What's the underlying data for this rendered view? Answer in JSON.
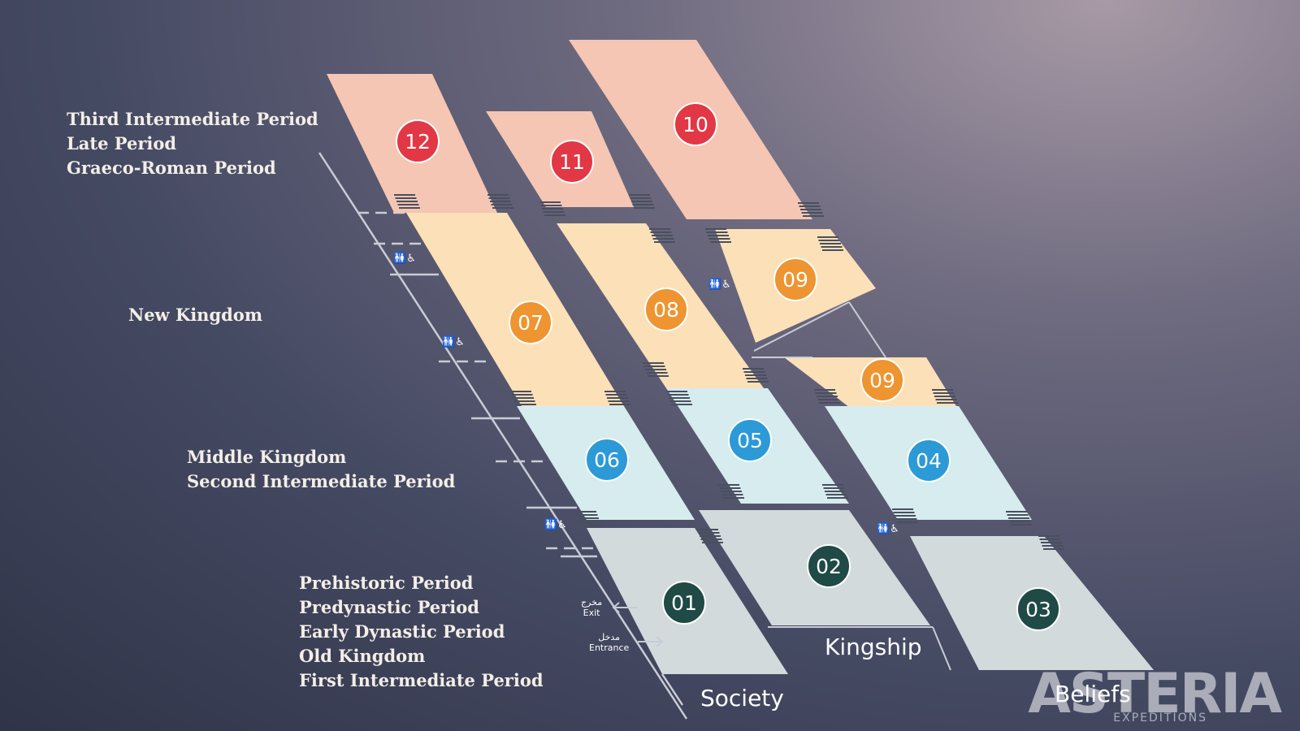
{
  "period_groups": {
    "late": [
      "Third Intermediate Period",
      "Late Period",
      "Graeco-Roman Period"
    ],
    "new": [
      "New Kingdom"
    ],
    "middle": [
      "Middle Kingdom",
      "Second Intermediate Period"
    ],
    "early": [
      "Prehistoric Period",
      "Predynastic Period",
      "Early Dynastic Period",
      "Old Kingdom",
      "First Intermediate Period"
    ]
  },
  "wings": {
    "society": "Society",
    "kingship": "Kingship",
    "beliefs": "Beliefs"
  },
  "doors": {
    "exit_ar": "مخرج",
    "exit_en": "Exit",
    "entrance_ar": "مدخل",
    "entrance_en": "Entrance"
  },
  "accessibility_icon_text": "🚻♿",
  "galleries": [
    {
      "id": "01",
      "color": "#1f4a45"
    },
    {
      "id": "02",
      "color": "#1f4a45"
    },
    {
      "id": "03",
      "color": "#1f4a45"
    },
    {
      "id": "04",
      "color": "#2b9ad6"
    },
    {
      "id": "05",
      "color": "#2b9ad6"
    },
    {
      "id": "06",
      "color": "#2b9ad6"
    },
    {
      "id": "07",
      "color": "#ee9430"
    },
    {
      "id": "08",
      "color": "#ee9430"
    },
    {
      "id": "09",
      "color": "#ee9430"
    },
    {
      "id": "09",
      "color": "#ee9430"
    },
    {
      "id": "10",
      "color": "#e23744"
    },
    {
      "id": "11",
      "color": "#e23744"
    },
    {
      "id": "12",
      "color": "#e23744"
    }
  ],
  "zone_colors": {
    "late": "#f5c6b4",
    "new": "#fbe0b8",
    "middle": "#d6ecee",
    "early": "#d3dadc"
  },
  "logo": {
    "brand": "ASTERIA",
    "sub": "EXPEDITIONS"
  }
}
